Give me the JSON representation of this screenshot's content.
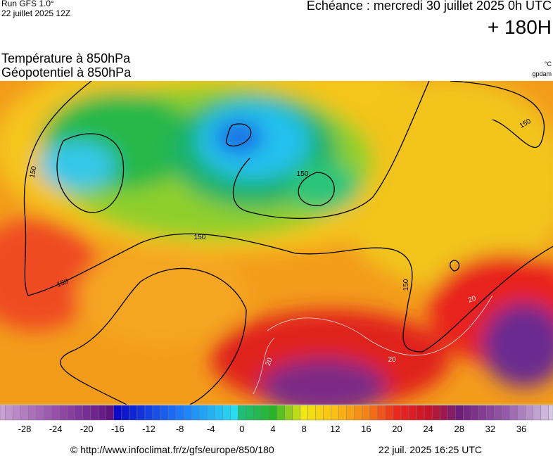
{
  "header": {
    "run": "Run GFS 1.0°",
    "run_date": "22 juillet 2025 12Z",
    "valid": "Echéance : mercredi 30 juillet 2025 0h UTC",
    "lead": "+ 180H"
  },
  "titles": {
    "line1": "Température à 850hPa",
    "line2": "Géopotentiel à 850hPa",
    "unit_temp": "°C",
    "unit_geo": "gpdam"
  },
  "map": {
    "contour_labels": [
      "150",
      "150",
      "150",
      "150",
      "150",
      "150"
    ],
    "isotherm_labels": [
      "20",
      "20",
      "20"
    ]
  },
  "colorbar": {
    "ticks": [
      -28,
      -24,
      -20,
      -16,
      -12,
      -8,
      -4,
      0,
      4,
      8,
      12,
      16,
      20,
      24,
      28,
      32,
      36
    ]
  },
  "footer": {
    "source": "© http://www.infoclimat.fr/z/gfs/europe/850/180",
    "generated": "22 juil. 2025 16:25 UTC"
  }
}
